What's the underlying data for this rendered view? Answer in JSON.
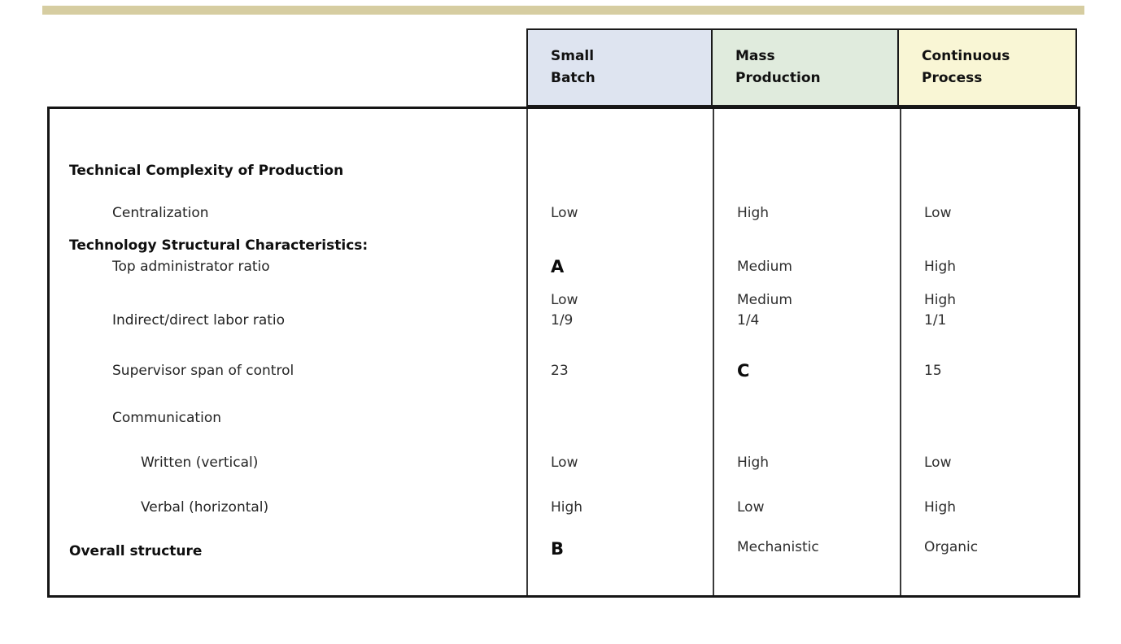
{
  "page": {
    "background": "#ffffff",
    "accent_bar_color": "#d6cda1"
  },
  "table": {
    "columns": [
      {
        "line1": "Small",
        "line2": "Batch",
        "bg": "#dee4f0"
      },
      {
        "line1": "Mass",
        "line2": "Production",
        "bg": "#e0ebdd"
      },
      {
        "line1": "Continuous",
        "line2": "Process",
        "bg": "#f9f6d5"
      }
    ],
    "rows": [
      {
        "label_line1": "Technical Complexity of Production",
        "label_line2": "Technology Structural Characteristics:",
        "values": [
          "Low",
          "Medium",
          "High"
        ]
      },
      {
        "label": "Centralization",
        "values": [
          "Low",
          "High",
          "Low"
        ]
      },
      {
        "label": "Top administrator ratio",
        "values": [
          "A",
          "Medium",
          "High"
        ]
      },
      {
        "label": "Indirect/direct labor ratio",
        "values": [
          "1/9",
          "1/4",
          "1/1"
        ]
      },
      {
        "label": "Supervisor span of control",
        "values": [
          "23",
          "C",
          "15"
        ]
      },
      {
        "label": "Communication",
        "values": [
          "",
          "",
          ""
        ]
      },
      {
        "label": "Written (vertical)",
        "values": [
          "Low",
          "High",
          "Low"
        ]
      },
      {
        "label": "Verbal (horizontal)",
        "values": [
          "High",
          "Low",
          "High"
        ]
      },
      {
        "label": "Overall structure",
        "values": [
          "B",
          "Mechanistic",
          "Organic"
        ]
      }
    ]
  }
}
